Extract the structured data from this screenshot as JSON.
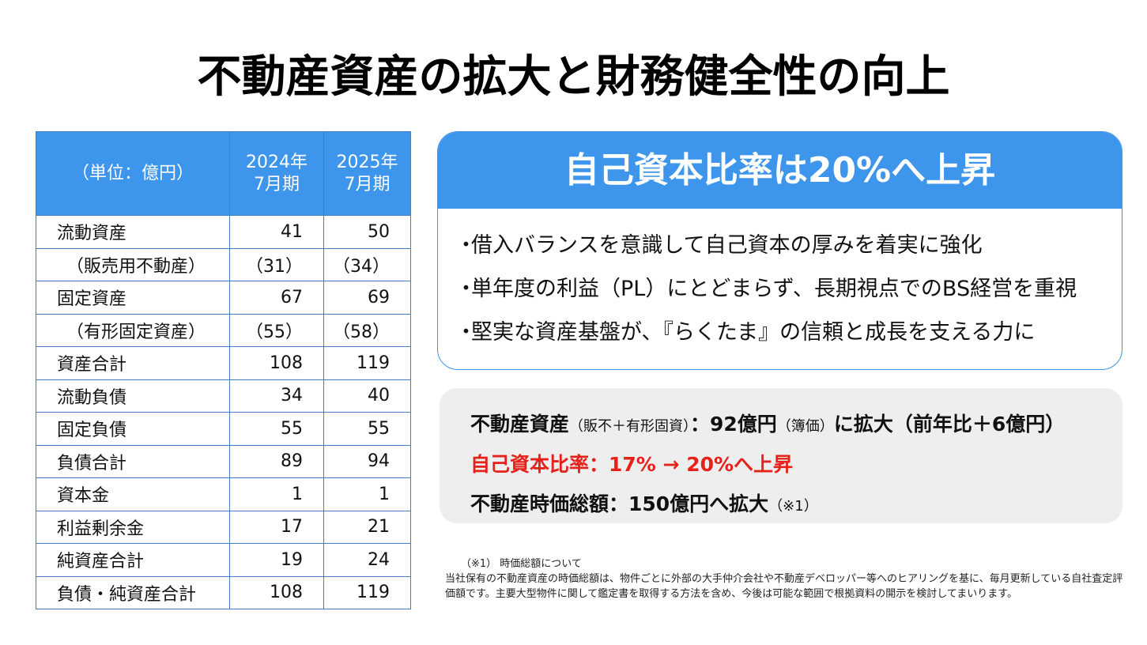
{
  "title": "不動産資産の拡大と財務健全性の向上",
  "table": {
    "header": {
      "unit": "（単位：億円）",
      "col1_year": "2024年",
      "col1_period": "7月期",
      "col2_year": "2025年",
      "col2_period": "7月期"
    },
    "rows": [
      {
        "label": "流動資産",
        "v2024": "41",
        "v2025": "50"
      },
      {
        "label": "（販売用不動産）",
        "v2024": "（31）",
        "v2025": "（34）"
      },
      {
        "label": "固定資産",
        "v2024": "67",
        "v2025": "69"
      },
      {
        "label": "（有形固定資産）",
        "v2024": "（55）",
        "v2025": "（58）"
      },
      {
        "label": "資産合計",
        "v2024": "108",
        "v2025": "119"
      },
      {
        "label": "流動負債",
        "v2024": "34",
        "v2025": "40"
      },
      {
        "label": "固定負債",
        "v2024": "55",
        "v2025": "55"
      },
      {
        "label": "負債合計",
        "v2024": "89",
        "v2025": "94"
      },
      {
        "label": "資本金",
        "v2024": "1",
        "v2025": "1"
      },
      {
        "label": "利益剰余金",
        "v2024": "17",
        "v2025": "21"
      },
      {
        "label": "純資産合計",
        "v2024": "19",
        "v2025": "24"
      },
      {
        "label": "負債・純資産合計",
        "v2024": "108",
        "v2025": "119"
      }
    ]
  },
  "highlight": {
    "heading": "自己資本比率は20%へ上昇",
    "bullet_mark": "・",
    "bullets": [
      "借入バランスを意識して自己資本の厚みを着実に強化",
      "単年度の利益（PL）にとどまらず、長期視点でのBS経営を重視",
      "堅実な資産基盤が、『らくたま』の信頼と成長を支える力に"
    ]
  },
  "summary": {
    "line1_main": "不動産資産",
    "line1_note": "（販不＋有形固資）",
    "line1_value": "：92億円",
    "line1_note2": "（簿価）",
    "line1_tail": "に拡大（前年比＋6億円）",
    "line2": "自己資本比率：17% → 20%へ上昇",
    "line3_main": "不動産時価総額：150億円へ拡大",
    "line3_note": "（※1）"
  },
  "footnote": {
    "title": "（※1） 時価総額について",
    "body": "当社保有の不動産資産の時価総額は、物件ごとに外部の大手仲介会社や不動産デベロッパー等へのヒアリングを基に、毎月更新している自社査定評価額です。主要大型物件に関して鑑定書を取得する方法を含め、今後は可能な範囲で根拠資料の開示を検討してまいります。"
  },
  "colors": {
    "accent_blue": "#3d95ec",
    "highlight_red": "#e6211a",
    "summary_bg": "#eeeeee"
  }
}
